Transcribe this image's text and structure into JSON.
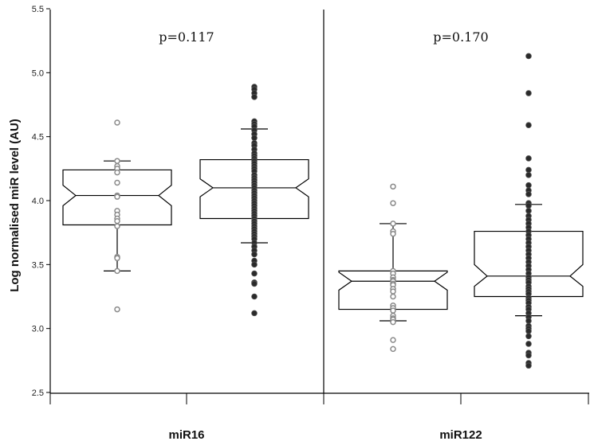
{
  "chart_data": {
    "type": "boxplot",
    "ylabel": "Log normalised miR level (AU)",
    "ylim": [
      2.5,
      5.5
    ],
    "yticks": [
      "2.5",
      "3.0",
      "3.5",
      "4.0",
      "4.5",
      "5.0",
      "5.5"
    ],
    "panels": [
      {
        "label": "miR16",
        "pvalue": "p=0.117",
        "boxes": [
          {
            "marker": "open",
            "median": 4.04,
            "q1": 3.81,
            "q3": 4.24,
            "notch_low": 3.96,
            "notch_high": 4.12,
            "whisker_low": 3.45,
            "whisker_high": 4.31,
            "points": [
              4.61,
              4.31,
              4.27,
              4.25,
              4.22,
              4.14,
              4.04,
              4.03,
              3.92,
              3.89,
              3.86,
              3.84,
              3.8,
              3.56,
              3.55,
              3.45,
              3.15
            ]
          },
          {
            "marker": "filled",
            "median": 4.1,
            "q1": 3.86,
            "q3": 4.32,
            "notch_low": 4.03,
            "notch_high": 4.17,
            "whisker_low": 3.67,
            "whisker_high": 4.56,
            "points": [
              4.89,
              4.87,
              4.84,
              4.81,
              4.62,
              4.6,
              4.58,
              4.55,
              4.52,
              4.49,
              4.45,
              4.43,
              4.4,
              4.37,
              4.35,
              4.33,
              4.31,
              4.29,
              4.27,
              4.25,
              4.23,
              4.2,
              4.18,
              4.16,
              4.14,
              4.12,
              4.1,
              4.08,
              4.06,
              4.04,
              4.02,
              4.0,
              3.98,
              3.96,
              3.94,
              3.92,
              3.9,
              3.88,
              3.86,
              3.84,
              3.82,
              3.8,
              3.78,
              3.76,
              3.74,
              3.72,
              3.7,
              3.67,
              3.64,
              3.61,
              3.58,
              3.53,
              3.5,
              3.43,
              3.36,
              3.35,
              3.25,
              3.12
            ]
          }
        ]
      },
      {
        "label": "miR122",
        "pvalue": "p=0.170",
        "boxes": [
          {
            "marker": "open",
            "median": 3.37,
            "q1": 3.15,
            "q3": 3.45,
            "notch_low": 3.3,
            "notch_high": 3.44,
            "whisker_low": 3.06,
            "whisker_high": 3.82,
            "points": [
              4.11,
              3.98,
              3.82,
              3.76,
              3.74,
              3.45,
              3.43,
              3.4,
              3.38,
              3.37,
              3.35,
              3.34,
              3.31,
              3.29,
              3.25,
              3.18,
              3.16,
              3.14,
              3.1,
              3.08,
              3.07,
              3.05,
              2.91,
              2.84
            ]
          },
          {
            "marker": "filled",
            "median": 3.41,
            "q1": 3.25,
            "q3": 3.76,
            "notch_low": 3.33,
            "notch_high": 3.5,
            "whisker_low": 3.1,
            "whisker_high": 3.97,
            "points": [
              5.13,
              4.84,
              4.59,
              4.33,
              4.24,
              4.2,
              4.12,
              4.08,
              4.05,
              3.98,
              3.96,
              3.92,
              3.88,
              3.85,
              3.82,
              3.79,
              3.76,
              3.73,
              3.7,
              3.67,
              3.64,
              3.61,
              3.58,
              3.55,
              3.52,
              3.49,
              3.46,
              3.43,
              3.4,
              3.38,
              3.36,
              3.33,
              3.31,
              3.29,
              3.27,
              3.24,
              3.22,
              3.2,
              3.17,
              3.15,
              3.12,
              3.09,
              3.06,
              3.02,
              3.0,
              2.98,
              2.94,
              2.88,
              2.81,
              2.79,
              2.73,
              2.71
            ]
          }
        ]
      }
    ]
  }
}
